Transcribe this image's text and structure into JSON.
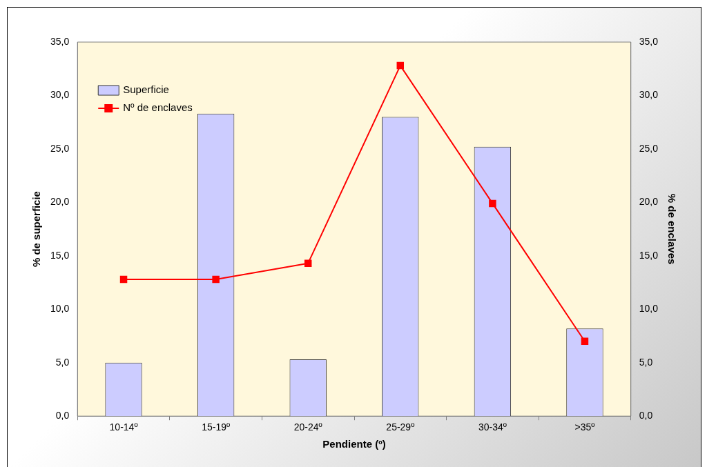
{
  "chart_data": {
    "type": "bar",
    "xlabel": "Pendiente (º)",
    "ylabel": "% de superficie",
    "y2label": "% de enclaves",
    "categories": [
      "10-14º",
      "15-19º",
      "20-24º",
      "25-29º",
      "30-34º",
      ">35º"
    ],
    "series": [
      {
        "name": "Superficie",
        "color": "#ccccff",
        "values": [
          5.0,
          28.3,
          5.3,
          28.0,
          25.2,
          8.2
        ]
      },
      {
        "name": "Nº de enclaves",
        "type": "line",
        "axis": "y2",
        "color": "#ff0000",
        "values": [
          12.8,
          12.8,
          14.3,
          32.8,
          19.9,
          7.0
        ]
      }
    ],
    "ylim": [
      0,
      35
    ],
    "yticks": [
      {
        "value": 0,
        "label": "0,0"
      },
      {
        "value": 5,
        "label": "5,0"
      },
      {
        "value": 10,
        "label": "10,0"
      },
      {
        "value": 15,
        "label": "15,0"
      },
      {
        "value": 20,
        "label": "20,0"
      },
      {
        "value": 25,
        "label": "25,0"
      },
      {
        "value": 30,
        "label": "30,0"
      },
      {
        "value": 35,
        "label": "35,0"
      }
    ],
    "y2lim": [
      0,
      35
    ],
    "y2ticks": [
      {
        "value": 0,
        "label": "0,0"
      },
      {
        "value": 5,
        "label": "5,0"
      },
      {
        "value": 10,
        "label": "10,0"
      },
      {
        "value": 15,
        "label": "15,0"
      },
      {
        "value": 20,
        "label": "20,0"
      },
      {
        "value": 25,
        "label": "25,0"
      },
      {
        "value": 30,
        "label": "30,0"
      },
      {
        "value": 35,
        "label": "35,0"
      }
    ],
    "legend": "top left",
    "marker": "square",
    "grid": false
  }
}
